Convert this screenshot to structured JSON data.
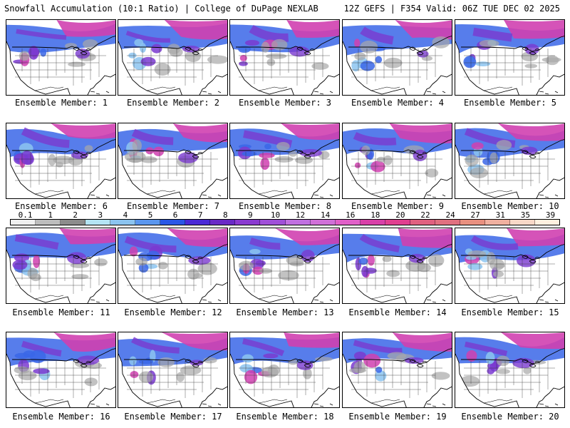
{
  "header": {
    "title_left": "Snowfall Accumulation (10:1 Ratio) | College of DuPage NEXLAB",
    "title_right": "12Z GEFS | F354 Valid: 06Z TUE DEC 02 2025"
  },
  "members": [
    {
      "label": "Ensemble Member: 1"
    },
    {
      "label": "Ensemble Member: 2"
    },
    {
      "label": "Ensemble Member: 3"
    },
    {
      "label": "Ensemble Member: 4"
    },
    {
      "label": "Ensemble Member: 5"
    },
    {
      "label": "Ensemble Member: 6"
    },
    {
      "label": "Ensemble Member: 7"
    },
    {
      "label": "Ensemble Member: 8"
    },
    {
      "label": "Ensemble Member: 9"
    },
    {
      "label": "Ensemble Member: 10"
    },
    {
      "label": "Ensemble Member: 11"
    },
    {
      "label": "Ensemble Member: 12"
    },
    {
      "label": "Ensemble Member: 13"
    },
    {
      "label": "Ensemble Member: 14"
    },
    {
      "label": "Ensemble Member: 15"
    },
    {
      "label": "Ensemble Member: 16"
    },
    {
      "label": "Ensemble Member: 17"
    },
    {
      "label": "Ensemble Member: 18"
    },
    {
      "label": "Ensemble Member: 19"
    },
    {
      "label": "Ensemble Member: 20"
    }
  ],
  "colorbar": {
    "labels": [
      "0.1",
      "1",
      "2",
      "3",
      "4",
      "5",
      "6",
      "7",
      "8",
      "9",
      "10",
      "12",
      "14",
      "16",
      "18",
      "20",
      "22",
      "24",
      "27",
      "31",
      "35",
      "39"
    ],
    "colors": [
      "#f0f0f0",
      "#bdbdbd",
      "#8c8c8c",
      "#b4e4f4",
      "#8cc4f0",
      "#5a96ee",
      "#2a56e6",
      "#4a2ad6",
      "#6a2ac6",
      "#8a3ad0",
      "#a050d8",
      "#c070e0",
      "#d070d8",
      "#e060c8",
      "#d840a8",
      "#e04090",
      "#e06080",
      "#e07080",
      "#e89080",
      "#f0b0a0",
      "#f8d8c8",
      "#fff0e0"
    ]
  },
  "map_colors": {
    "gray": "#a8a8a8",
    "light_blue": "#8cc4f0",
    "blue": "#3a66e8",
    "violet": "#7a3ad0",
    "magenta": "#d040b0"
  }
}
